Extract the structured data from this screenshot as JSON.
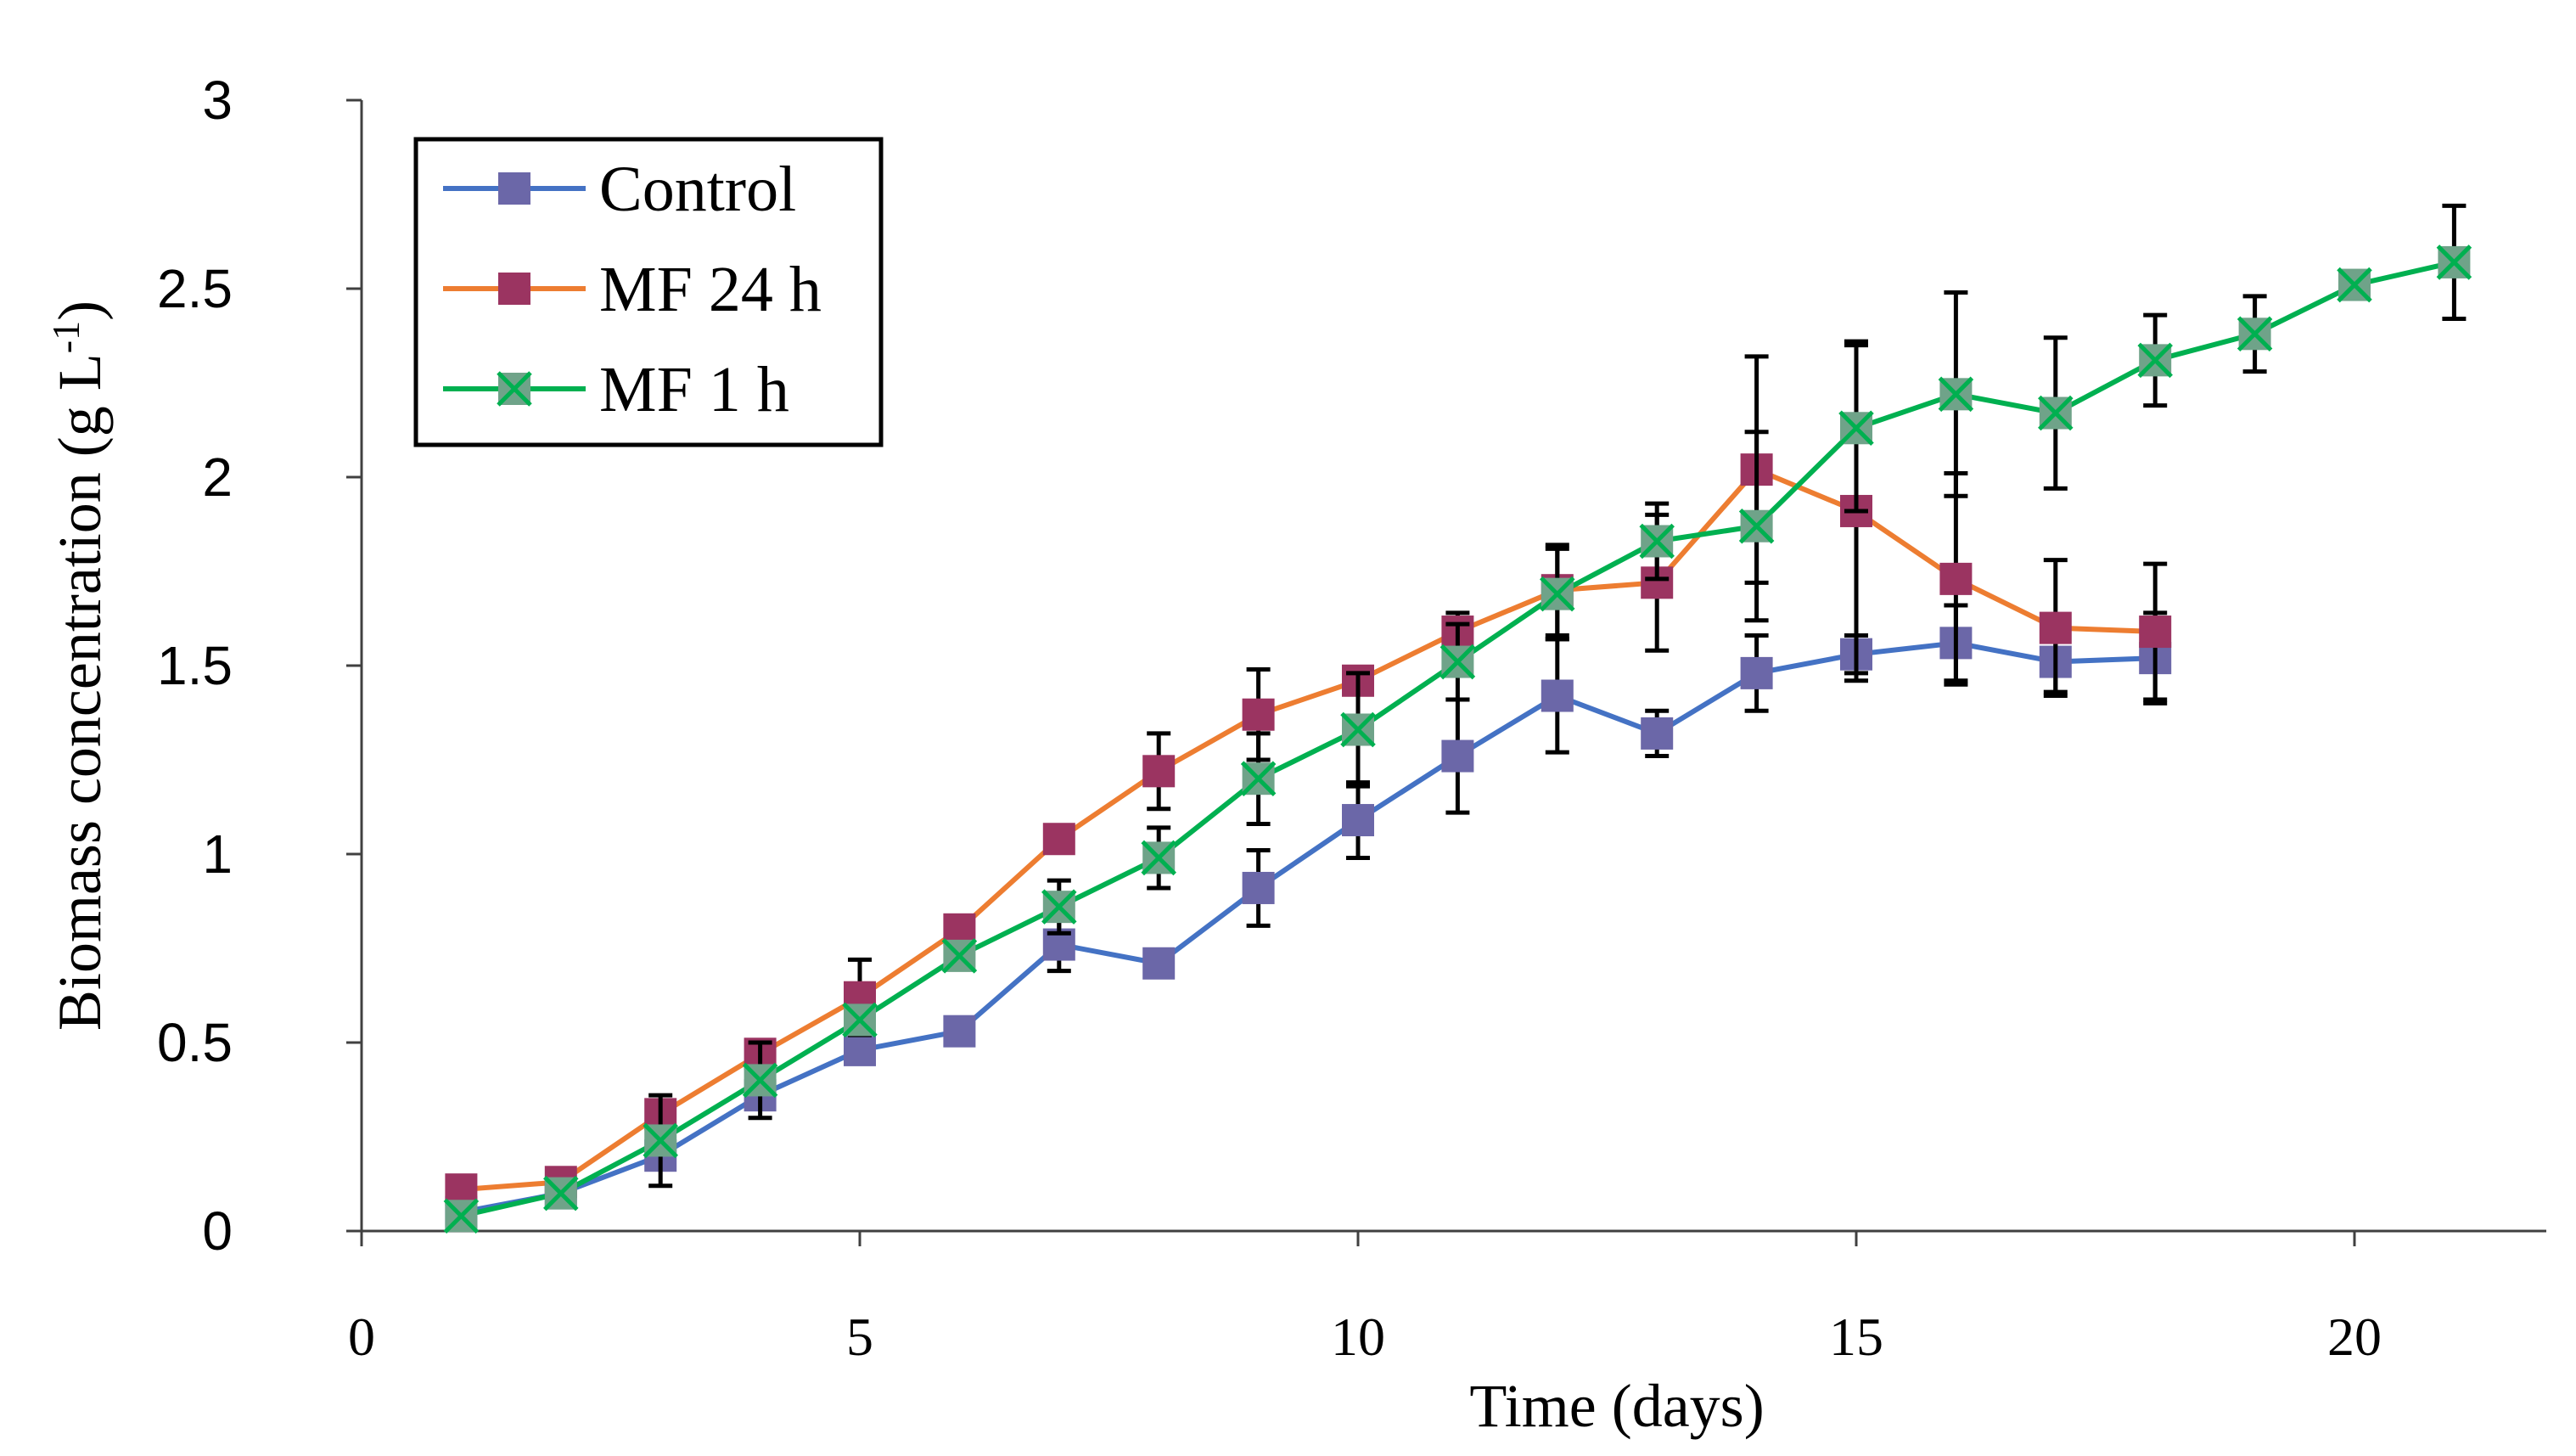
{
  "chart_data": {
    "type": "line",
    "title": "",
    "xlabel": "Time (days)",
    "ylabel_main": "Biomass concentration (g L",
    "ylabel_sup": "-1",
    "ylabel_close": ")",
    "xlim": [
      0,
      22
    ],
    "ylim": [
      0,
      3
    ],
    "xticks": [
      0,
      5,
      10,
      15,
      20
    ],
    "xtick_labels": [
      "0",
      "5",
      "10",
      "15",
      "20"
    ],
    "yticks": [
      0,
      0.5,
      1,
      1.5,
      2,
      2.5,
      3
    ],
    "ytick_labels": [
      "0",
      "0.5",
      "1",
      "1.5",
      "2",
      "2.5",
      "3"
    ],
    "legend_position": "top-left",
    "series": [
      {
        "name": "Control",
        "line_color": "#4472c4",
        "marker_color": "#6b67a8",
        "marker": "square",
        "x": [
          1,
          2,
          3,
          4,
          5,
          6,
          7,
          8,
          9,
          10,
          11,
          12,
          13,
          14,
          15,
          16,
          17,
          18
        ],
        "y": [
          0.05,
          0.1,
          0.2,
          0.36,
          0.48,
          0.53,
          0.76,
          0.71,
          0.91,
          1.09,
          1.26,
          1.42,
          1.32,
          1.48,
          1.53,
          1.56,
          1.51,
          1.52
        ],
        "err": [
          0,
          0,
          0,
          0,
          0,
          0,
          0.07,
          0,
          0.1,
          0.1,
          0.15,
          0.15,
          0.06,
          0.1,
          0.05,
          0.1,
          0.08,
          0.12
        ]
      },
      {
        "name": "MF 24 h",
        "line_color": "#ed7d31",
        "marker_color": "#9b3461",
        "marker": "square",
        "x": [
          1,
          2,
          3,
          4,
          5,
          6,
          7,
          8,
          9,
          10,
          11,
          12,
          13,
          14,
          15,
          16,
          17,
          18
        ],
        "y": [
          0.11,
          0.13,
          0.31,
          0.47,
          0.62,
          0.8,
          1.04,
          1.22,
          1.37,
          1.46,
          1.59,
          1.7,
          1.72,
          2.02,
          1.91,
          1.73,
          1.6,
          1.59
        ],
        "err": [
          0,
          0,
          0,
          0,
          0.1,
          0,
          0,
          0.1,
          0.12,
          0,
          0.05,
          0.12,
          0.18,
          0.3,
          0.45,
          0.28,
          0.18,
          0.18
        ]
      },
      {
        "name": "MF 1 h",
        "line_color": "#00b050",
        "marker_color": "#6fa389",
        "marker": "x-square",
        "x": [
          1,
          2,
          3,
          4,
          5,
          6,
          7,
          8,
          9,
          10,
          11,
          12,
          13,
          14,
          15,
          16,
          17,
          18,
          19,
          20,
          21
        ],
        "y": [
          0.04,
          0.1,
          0.24,
          0.4,
          0.56,
          0.73,
          0.86,
          0.99,
          1.2,
          1.33,
          1.51,
          1.69,
          1.83,
          1.87,
          2.13,
          2.22,
          2.17,
          2.31,
          2.38,
          2.51,
          2.57
        ],
        "err": [
          0,
          0,
          0.12,
          0.1,
          0,
          0,
          0.07,
          0.08,
          0.12,
          0.15,
          0.1,
          0.12,
          0.1,
          0.25,
          0.22,
          0.27,
          0.2,
          0.12,
          0.1,
          0,
          0.15
        ]
      }
    ]
  }
}
